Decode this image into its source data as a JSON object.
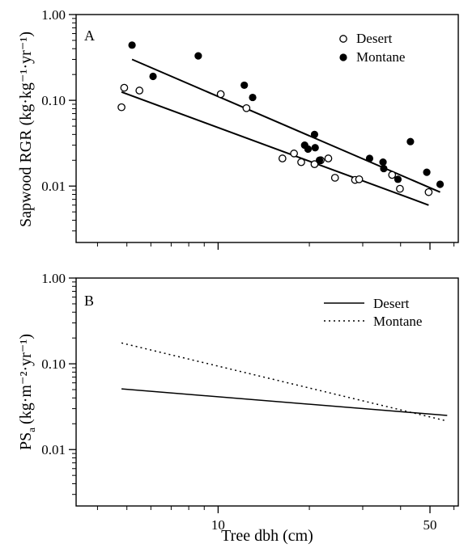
{
  "chart_data": [
    {
      "type": "scatter",
      "panel_label": "A",
      "ylabel": "Sapwood RGR (kg·kg⁻¹·yr⁻¹)",
      "yscale": "log",
      "xscale": "log",
      "ylim": [
        0.0022,
        1.0
      ],
      "xlim": [
        3.4,
        62
      ],
      "y_ticks": [
        {
          "value": 1.0,
          "label": "1.00"
        },
        {
          "value": 0.1,
          "label": "0.10"
        },
        {
          "value": 0.01,
          "label": "0.01"
        }
      ],
      "legend_position": "top-right",
      "series": [
        {
          "name": "Desert",
          "marker": "open-circle",
          "points": [
            [
              4.8,
              0.083
            ],
            [
              4.9,
              0.14
            ],
            [
              5.5,
              0.13
            ],
            [
              10.2,
              0.118
            ],
            [
              12.4,
              0.081
            ],
            [
              16.3,
              0.021
            ],
            [
              17.8,
              0.024
            ],
            [
              18.8,
              0.019
            ],
            [
              20.8,
              0.018
            ],
            [
              21.8,
              0.02
            ],
            [
              23.1,
              0.021
            ],
            [
              24.3,
              0.0125
            ],
            [
              28.3,
              0.0118
            ],
            [
              29.2,
              0.012
            ],
            [
              37.5,
              0.0135
            ],
            [
              39.8,
              0.0093
            ],
            [
              49.5,
              0.0085
            ]
          ],
          "fit": {
            "x": [
              4.8,
              49.5
            ],
            "y": [
              0.125,
              0.006
            ]
          }
        },
        {
          "name": "Montane",
          "marker": "filled-circle",
          "points": [
            [
              5.2,
              0.44
            ],
            [
              6.1,
              0.19
            ],
            [
              8.6,
              0.33
            ],
            [
              12.2,
              0.15
            ],
            [
              13.0,
              0.108
            ],
            [
              19.3,
              0.03
            ],
            [
              19.8,
              0.027
            ],
            [
              20.8,
              0.04
            ],
            [
              20.9,
              0.028
            ],
            [
              21.6,
              0.02
            ],
            [
              31.6,
              0.021
            ],
            [
              35.0,
              0.019
            ],
            [
              35.2,
              0.016
            ],
            [
              39.2,
              0.012
            ],
            [
              43.1,
              0.033
            ],
            [
              48.8,
              0.0145
            ],
            [
              54.0,
              0.0105
            ]
          ],
          "fit": {
            "x": [
              5.2,
              54.0
            ],
            "y": [
              0.3,
              0.0085
            ]
          }
        }
      ]
    },
    {
      "type": "line",
      "panel_label": "B",
      "xlabel": "Tree dbh (cm)",
      "ylabel": "PSa (kg·m⁻²·yr⁻¹)",
      "ylabel_main": "PS",
      "ylabel_sub": "a",
      "ylabel_units": "(kg·m⁻²·yr⁻¹)",
      "yscale": "log",
      "xscale": "log",
      "ylim": [
        0.0022,
        1.0
      ],
      "xlim": [
        3.4,
        62
      ],
      "y_ticks": [
        {
          "value": 1.0,
          "label": "1.00"
        },
        {
          "value": 0.1,
          "label": "0.10"
        },
        {
          "value": 0.01,
          "label": "0.01"
        }
      ],
      "x_ticks": [
        {
          "value": 10,
          "label": "10"
        },
        {
          "value": 50,
          "label": "50"
        }
      ],
      "legend_position": "top-right",
      "series": [
        {
          "name": "Desert",
          "style": "solid",
          "x": [
            4.8,
            57.0
          ],
          "y": [
            0.051,
            0.025
          ]
        },
        {
          "name": "Montane",
          "style": "dotted",
          "x": [
            4.8,
            57.0
          ],
          "y": [
            0.175,
            0.0215
          ]
        }
      ]
    }
  ]
}
